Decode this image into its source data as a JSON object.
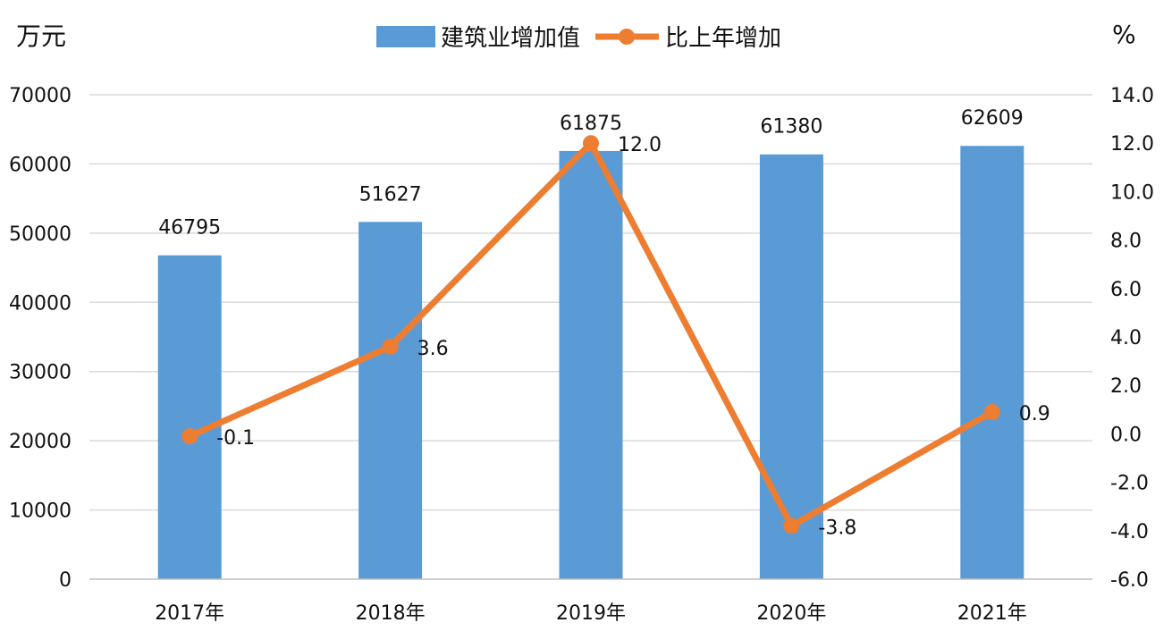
{
  "chart_data": {
    "type": "bar",
    "categories": [
      "2017年",
      "2018年",
      "2019年",
      "2020年",
      "2021年"
    ],
    "series": [
      {
        "name": "建筑业增加值",
        "type": "bar",
        "axis": "left",
        "values": [
          46795,
          51627,
          61875,
          61380,
          62609
        ],
        "color": "#5B9BD5"
      },
      {
        "name": "比上年增加",
        "type": "line",
        "axis": "right",
        "values": [
          -0.1,
          3.6,
          12.0,
          -3.8,
          0.9
        ],
        "color": "#ED7D31"
      }
    ],
    "bar_labels": [
      "46795",
      "51627",
      "61875",
      "61380",
      "62609"
    ],
    "line_labels": [
      "-0.1",
      "3.6",
      "12.0",
      "-3.8",
      "0.9"
    ],
    "y_left": {
      "label": "万元",
      "range": [
        0,
        70000
      ],
      "ticks": [
        "0",
        "10000",
        "20000",
        "30000",
        "40000",
        "50000",
        "60000",
        "70000"
      ]
    },
    "y_right": {
      "label": "%",
      "range": [
        -6.0,
        14.0
      ],
      "ticks": [
        "-6.0",
        "-4.0",
        "-2.0",
        "0.0",
        "2.0",
        "4.0",
        "6.0",
        "8.0",
        "10.0",
        "12.0",
        "14.0"
      ]
    },
    "grid": true,
    "legend_position": "top-center"
  }
}
